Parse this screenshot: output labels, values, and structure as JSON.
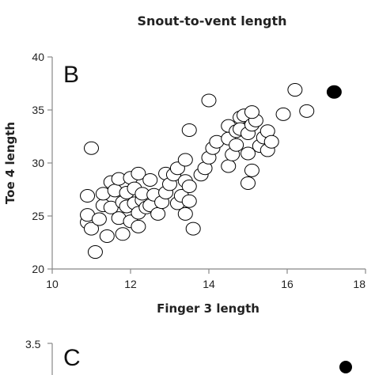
{
  "title": "Snout-to-vent length",
  "chart_data": [
    {
      "type": "scatter",
      "panel": "B",
      "xlabel": "Finger 3 length",
      "ylabel": "Toe 4 length",
      "xlim": [
        10,
        18
      ],
      "ylim": [
        20,
        40
      ],
      "xticks": [
        "10",
        "12",
        "14",
        "16",
        "18"
      ],
      "yticks": [
        "20",
        "25",
        "30",
        "35",
        "40"
      ],
      "grid": false,
      "series": [
        {
          "marker": "open-circle",
          "color": "#ffffff",
          "points": [
            [
              11.0,
              31.4
            ],
            [
              10.9,
              26.9
            ],
            [
              10.9,
              24.4
            ],
            [
              10.9,
              25.1
            ],
            [
              11.0,
              23.8
            ],
            [
              11.1,
              21.6
            ],
            [
              11.2,
              24.7
            ],
            [
              11.3,
              26.0
            ],
            [
              11.3,
              27.1
            ],
            [
              11.4,
              23.1
            ],
            [
              11.5,
              28.2
            ],
            [
              11.5,
              25.8
            ],
            [
              11.6,
              27.4
            ],
            [
              11.7,
              24.8
            ],
            [
              11.7,
              28.5
            ],
            [
              11.8,
              26.3
            ],
            [
              11.8,
              23.3
            ],
            [
              11.9,
              27.2
            ],
            [
              11.9,
              25.9
            ],
            [
              12.0,
              24.5
            ],
            [
              12.0,
              28.6
            ],
            [
              12.1,
              26.2
            ],
            [
              12.1,
              27.6
            ],
            [
              12.2,
              25.3
            ],
            [
              12.2,
              29.0
            ],
            [
              12.2,
              24.0
            ],
            [
              12.3,
              26.5
            ],
            [
              12.3,
              27.1
            ],
            [
              12.4,
              25.8
            ],
            [
              12.5,
              26.0
            ],
            [
              12.5,
              28.4
            ],
            [
              12.6,
              27.0
            ],
            [
              12.7,
              25.2
            ],
            [
              12.8,
              26.3
            ],
            [
              12.9,
              29.0
            ],
            [
              12.9,
              27.2
            ],
            [
              13.0,
              28.0
            ],
            [
              13.1,
              28.9
            ],
            [
              13.2,
              26.2
            ],
            [
              13.2,
              29.5
            ],
            [
              13.3,
              26.9
            ],
            [
              13.4,
              30.3
            ],
            [
              13.4,
              28.3
            ],
            [
              13.5,
              27.8
            ],
            [
              13.5,
              26.4
            ],
            [
              13.4,
              25.2
            ],
            [
              13.6,
              23.8
            ],
            [
              13.5,
              33.1
            ],
            [
              13.8,
              28.9
            ],
            [
              13.9,
              29.5
            ],
            [
              14.0,
              30.5
            ],
            [
              14.1,
              31.4
            ],
            [
              14.2,
              32.0
            ],
            [
              14.0,
              35.9
            ],
            [
              14.5,
              29.7
            ],
            [
              14.6,
              30.8
            ],
            [
              14.5,
              32.3
            ],
            [
              14.5,
              33.5
            ],
            [
              14.7,
              33.0
            ],
            [
              14.7,
              31.7
            ],
            [
              14.8,
              34.3
            ],
            [
              14.8,
              33.2
            ],
            [
              14.9,
              34.5
            ],
            [
              15.0,
              32.8
            ],
            [
              15.0,
              30.9
            ],
            [
              15.0,
              28.1
            ],
            [
              15.1,
              29.3
            ],
            [
              15.1,
              33.6
            ],
            [
              15.2,
              34.0
            ],
            [
              15.1,
              34.8
            ],
            [
              15.3,
              31.6
            ],
            [
              15.4,
              32.4
            ],
            [
              15.5,
              31.2
            ],
            [
              15.5,
              33.0
            ],
            [
              15.6,
              32.0
            ],
            [
              15.9,
              34.6
            ],
            [
              16.2,
              36.9
            ],
            [
              16.5,
              34.9
            ]
          ]
        },
        {
          "marker": "filled-circle",
          "color": "#000000",
          "points": [
            [
              17.2,
              36.7
            ]
          ]
        }
      ]
    },
    {
      "type": "scatter",
      "panel": "C",
      "ylim_top_tick": "3.5",
      "series": [
        {
          "marker": "filled-circle",
          "color": "#000000",
          "points": []
        }
      ]
    }
  ]
}
